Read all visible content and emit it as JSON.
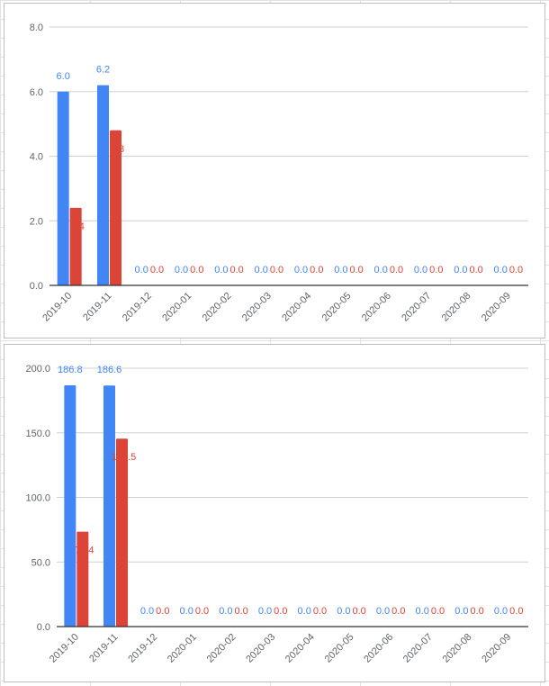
{
  "colors": {
    "series_a": "#4285f4",
    "series_b": "#db4437",
    "grid": "#d0d0d0",
    "axis": "#333333",
    "text": "#5f6368"
  },
  "chart_data": [
    {
      "type": "bar",
      "categories": [
        "2019-10",
        "2019-11",
        "2019-12",
        "2020-01",
        "2020-02",
        "2020-03",
        "2020-04",
        "2020-05",
        "2020-06",
        "2020-07",
        "2020-08",
        "2020-09"
      ],
      "series": [
        {
          "values": [
            6.0,
            6.2,
            0.0,
            0.0,
            0.0,
            0.0,
            0.0,
            0.0,
            0.0,
            0.0,
            0.0,
            0.0
          ],
          "color": "#4285f4"
        },
        {
          "values": [
            2.4,
            4.8,
            0.0,
            0.0,
            0.0,
            0.0,
            0.0,
            0.0,
            0.0,
            0.0,
            0.0,
            0.0
          ],
          "color": "#db4437"
        }
      ],
      "data_labels": [
        [
          "6.0",
          "6.2",
          "0.0",
          "0.0",
          "0.0",
          "0.0",
          "0.0",
          "0.0",
          "0.0",
          "0.0",
          "0.0",
          "0.0"
        ],
        [
          "2.4",
          "4.8",
          "0.0",
          "0.0",
          "0.0",
          "0.0",
          "0.0",
          "0.0",
          "0.0",
          "0.0",
          "0.0",
          "0.0"
        ]
      ],
      "yticks": [
        "0.0",
        "2.0",
        "4.0",
        "6.0",
        "8.0"
      ],
      "ylim": [
        0,
        8
      ],
      "grid": true,
      "title": "",
      "xlabel": "",
      "ylabel": ""
    },
    {
      "type": "bar",
      "categories": [
        "2019-10",
        "2019-11",
        "2019-12",
        "2020-01",
        "2020-02",
        "2020-03",
        "2020-04",
        "2020-05",
        "2020-06",
        "2020-07",
        "2020-08",
        "2020-09"
      ],
      "series": [
        {
          "values": [
            186.8,
            186.6,
            0.0,
            0.0,
            0.0,
            0.0,
            0.0,
            0.0,
            0.0,
            0.0,
            0.0,
            0.0
          ],
          "color": "#4285f4"
        },
        {
          "values": [
            73.4,
            145.5,
            0.0,
            0.0,
            0.0,
            0.0,
            0.0,
            0.0,
            0.0,
            0.0,
            0.0,
            0.0
          ],
          "color": "#db4437"
        }
      ],
      "data_labels": [
        [
          "186.8",
          "186.6",
          "0.0",
          "0.0",
          "0.0",
          "0.0",
          "0.0",
          "0.0",
          "0.0",
          "0.0",
          "0.0",
          "0.0"
        ],
        [
          "73.4",
          "145.5",
          "0.0",
          "0.0",
          "0.0",
          "0.0",
          "0.0",
          "0.0",
          "0.0",
          "0.0",
          "0.0",
          "0.0"
        ]
      ],
      "yticks": [
        "0.0",
        "50.0",
        "100.0",
        "150.0",
        "200.0"
      ],
      "ylim": [
        0,
        200
      ],
      "grid": true,
      "title": "",
      "xlabel": "",
      "ylabel": ""
    }
  ]
}
